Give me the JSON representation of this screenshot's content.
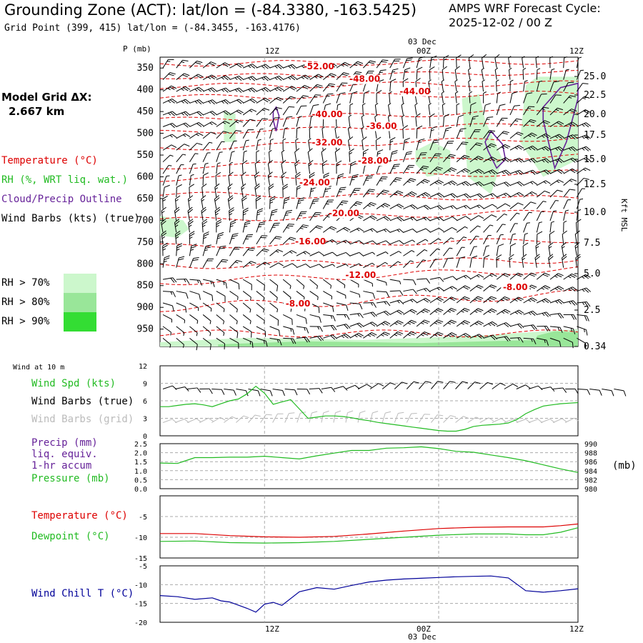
{
  "header": {
    "title": "Grounding Zone (ACT):  lat/lon = (-84.3380, -163.5425)",
    "subtitle": "Grid Point (399, 415) lat/lon = (-84.3455, -163.4176)",
    "cycle_line1": "AMPS WRF Forecast Cycle:",
    "cycle_line2": "2025-12-02 / 00  Z"
  },
  "left_panel": {
    "grid_title": "Model Grid ΔX:",
    "grid_value": "2.667 km",
    "legend_temperature": "Temperature (°C)",
    "legend_rh": "RH (%, WRT liq. wat.)",
    "legend_cloud": "Cloud/Precip Outline",
    "legend_wind": "Wind Barbs (kts) (true)",
    "rh_levels": [
      {
        "label": "RH > 70%",
        "color": "#ccf7cc"
      },
      {
        "label": "RH > 80%",
        "color": "#99e699"
      },
      {
        "label": "RH > 90%",
        "color": "#33dd33"
      }
    ]
  },
  "time_axis": {
    "top_date": "03 Dec",
    "bottom_date": "03 Dec",
    "labels": [
      "12Z",
      "00Z",
      "12Z"
    ]
  },
  "colors": {
    "temperature": "#dd0000",
    "rh": "#22bb22",
    "cloud": "#662299",
    "wind": "#000000",
    "wind_grid": "#bbbbbb",
    "windchill": "#000099",
    "grid": "#aaaaaa"
  },
  "chart_data": [
    {
      "type": "contour",
      "ylabel": "P (mb)",
      "right_label": "Kft MSL",
      "pressure_ticks": [
        "350",
        "400",
        "450",
        "500",
        "550",
        "600",
        "650",
        "700",
        "750",
        "800",
        "850",
        "900",
        "950"
      ],
      "height_ticks": [
        "25.0",
        "22.5",
        "20.0",
        "17.5",
        "15.0",
        "12.5",
        "10.0",
        "7.5",
        "5.0",
        "2.5",
        "0.34"
      ],
      "temperature_labels": [
        {
          "text": "-52.00",
          "t": 0.38,
          "p": 353
        },
        {
          "text": "-48.00",
          "t": 0.49,
          "p": 382
        },
        {
          "text": "-44.00",
          "t": 0.61,
          "p": 410
        },
        {
          "text": "-40.00",
          "t": 0.4,
          "p": 463
        },
        {
          "text": "-36.00",
          "t": 0.53,
          "p": 490
        },
        {
          "text": "-32.00",
          "t": 0.4,
          "p": 528
        },
        {
          "text": "-28.00",
          "t": 0.51,
          "p": 570
        },
        {
          "text": "-24.00",
          "t": 0.37,
          "p": 620
        },
        {
          "text": "-20.00",
          "t": 0.44,
          "p": 690
        },
        {
          "text": "-16.00",
          "t": 0.36,
          "p": 755
        },
        {
          "text": "-12.00",
          "t": 0.48,
          "p": 832
        },
        {
          "text": "-8.00",
          "t": 0.33,
          "p": 898
        },
        {
          "text": "-8.00",
          "t": 0.85,
          "p": 860
        }
      ]
    },
    {
      "type": "line",
      "title": "Wind at 10 m",
      "legend": [
        "Wind Spd (kts)",
        "Wind Barbs (true)",
        "Wind Barbs (grid)"
      ],
      "ylim": [
        0,
        12
      ],
      "yticks": [
        "0",
        "3",
        "6",
        "9",
        "12"
      ],
      "series": [
        {
          "name": "Wind Spd (kts)",
          "x": [
            0,
            3,
            6,
            9,
            12,
            15,
            18,
            21,
            24,
            27,
            30,
            33,
            36,
            39,
            42,
            45,
            48,
            51,
            54,
            57,
            60,
            63,
            66,
            69,
            72,
            75,
            78,
            81,
            84,
            87,
            90,
            93,
            96,
            99,
            102,
            105,
            108,
            111,
            114,
            117,
            120,
            123,
            126,
            129,
            132,
            135,
            138,
            141,
            144
          ],
          "values": [
            5.0,
            5.0,
            5.2,
            5.4,
            5.5,
            5.3,
            5.0,
            5.5,
            6.0,
            6.3,
            7.2,
            8.5,
            7.3,
            5.4,
            5.8,
            6.2,
            4.6,
            3.0,
            3.2,
            3.4,
            3.4,
            3.3,
            3.1,
            2.8,
            2.6,
            2.3,
            2.1,
            1.9,
            1.7,
            1.5,
            1.3,
            1.1,
            0.9,
            0.8,
            0.8,
            1.1,
            1.6,
            1.8,
            1.9,
            2.0,
            2.2,
            2.8,
            3.8,
            4.5,
            5.1,
            5.3,
            5.5,
            5.6,
            5.7
          ]
        }
      ]
    },
    {
      "type": "line",
      "legend": [
        "Precip (mm)",
        "liq. equiv.",
        "1-hr accum",
        "Pressure (mb)"
      ],
      "ylim_left": [
        0,
        2.5
      ],
      "yticks_left": [
        "0.0",
        "0.5",
        "1.0",
        "1.5",
        "2.0",
        "2.5"
      ],
      "ylim_right": [
        980,
        990
      ],
      "yticks_right": [
        "980",
        "982",
        "984",
        "986",
        "988",
        "990"
      ],
      "right_label": "(mb)",
      "series": [
        {
          "name": "Pressure (mb)",
          "x": [
            0,
            6,
            12,
            18,
            24,
            30,
            36,
            42,
            48,
            54,
            60,
            66,
            72,
            78,
            84,
            90,
            96,
            102,
            108,
            114,
            120,
            126,
            132,
            138,
            144
          ],
          "values": [
            985.7,
            985.6,
            986.9,
            986.9,
            987.0,
            987.0,
            987.2,
            986.9,
            986.6,
            987.3,
            987.9,
            988.5,
            988.5,
            989.0,
            989.1,
            989.3,
            988.9,
            988.3,
            988.1,
            987.5,
            986.9,
            986.2,
            985.3,
            984.4,
            983.6
          ]
        }
      ]
    },
    {
      "type": "line",
      "legend": [
        "Temperature (°C)",
        "Dewpoint (°C)"
      ],
      "ylim": [
        -15,
        0
      ],
      "yticks": [
        "-15",
        "-10",
        "-5"
      ],
      "series": [
        {
          "name": "Temperature (°C)",
          "x": [
            0,
            12,
            24,
            36,
            48,
            60,
            72,
            84,
            96,
            108,
            120,
            132,
            138,
            144
          ],
          "values": [
            -9.1,
            -9.1,
            -9.6,
            -9.9,
            -10.0,
            -9.8,
            -9.2,
            -8.5,
            -7.9,
            -7.6,
            -7.5,
            -7.5,
            -7.2,
            -6.8
          ]
        },
        {
          "name": "Dewpoint (°C)",
          "x": [
            0,
            12,
            24,
            36,
            48,
            60,
            72,
            84,
            96,
            108,
            120,
            126,
            132,
            138,
            144
          ],
          "values": [
            -11.0,
            -10.9,
            -11.3,
            -11.4,
            -11.3,
            -11.0,
            -10.5,
            -10.0,
            -9.5,
            -9.2,
            -9.2,
            -9.4,
            -9.4,
            -8.8,
            -7.7
          ]
        }
      ]
    },
    {
      "type": "line",
      "legend": [
        "Wind Chill T (°C)"
      ],
      "ylim": [
        -20,
        -5
      ],
      "yticks": [
        "-20",
        "-15",
        "-10",
        "-5"
      ],
      "series": [
        {
          "name": "Wind Chill T (°C)",
          "x": [
            0,
            6,
            12,
            18,
            21,
            24,
            30,
            33,
            36,
            39,
            42,
            48,
            54,
            60,
            66,
            72,
            78,
            84,
            90,
            96,
            102,
            108,
            114,
            120,
            126,
            132,
            138,
            144
          ],
          "values": [
            -12.9,
            -13.2,
            -13.9,
            -13.5,
            -14.3,
            -14.6,
            -16.3,
            -17.3,
            -15.2,
            -14.7,
            -15.5,
            -11.9,
            -10.8,
            -11.2,
            -10.2,
            -9.3,
            -8.8,
            -8.5,
            -8.3,
            -8.1,
            -7.9,
            -7.8,
            -7.7,
            -8.2,
            -11.6,
            -12.0,
            -11.6,
            -11.1
          ]
        }
      ]
    }
  ]
}
